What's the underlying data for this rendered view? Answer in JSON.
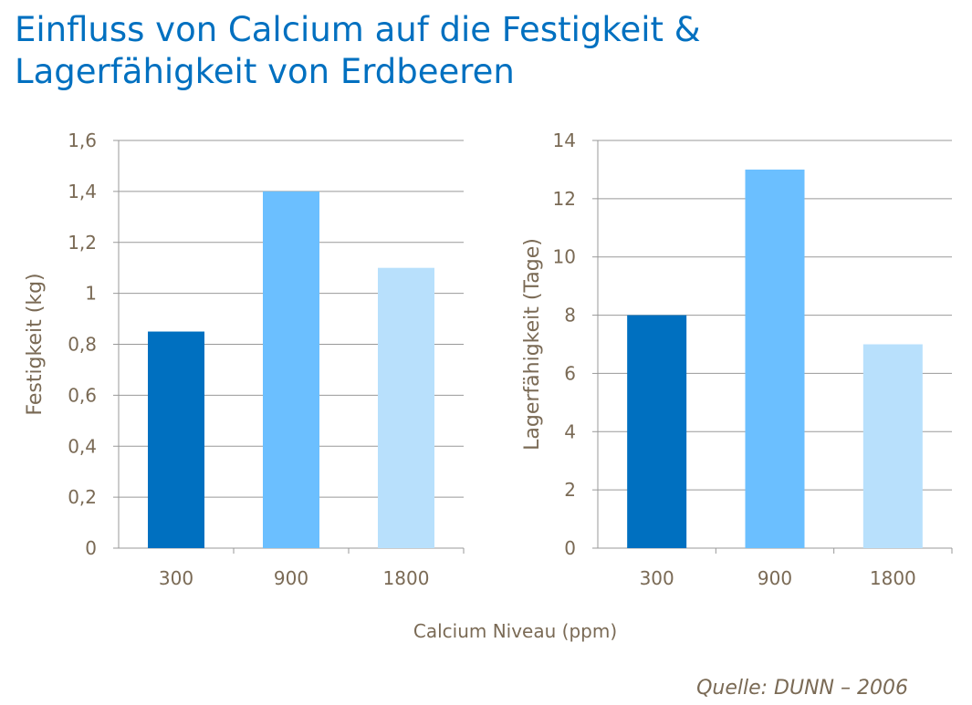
{
  "title": "Einfluss von Calcium auf die Festigkeit &\nLagerfähigkeit von Erdbeeren",
  "source": "Quelle: DUNN – 2006",
  "xlabel_shared": "Calcium Niveau (ppm)",
  "colors": [
    "#0070c0",
    "#6bbfff",
    "#b8e0fc"
  ],
  "text_color": "#7a6a55",
  "chart_data": [
    {
      "type": "bar",
      "categories": [
        "300",
        "900",
        "1800"
      ],
      "values": [
        0.85,
        1.4,
        1.1
      ],
      "ylabel": "Festigkeit (kg)",
      "ylim": [
        0,
        1.6
      ],
      "yticks": [
        "0",
        "0,2",
        "0,4",
        "0,6",
        "0,8",
        "1",
        "1,2",
        "1,4",
        "1,6"
      ],
      "grid": true
    },
    {
      "type": "bar",
      "categories": [
        "300",
        "900",
        "1800"
      ],
      "values": [
        8,
        13,
        7
      ],
      "ylabel": "Lagerfähigkeit (Tage)",
      "ylim": [
        0,
        14
      ],
      "yticks": [
        "0",
        "2",
        "4",
        "6",
        "8",
        "10",
        "12",
        "14"
      ],
      "grid": true
    }
  ]
}
